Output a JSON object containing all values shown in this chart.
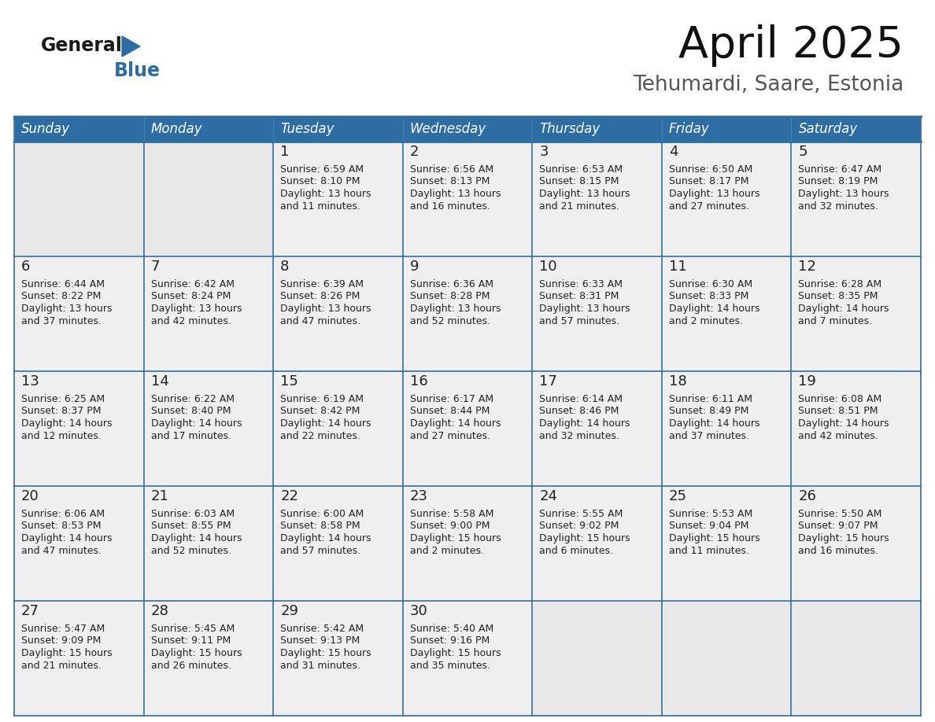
{
  "title": "April 2025",
  "subtitle": "Tehumardi, Saare, Estonia",
  "header_bg": "#2E6DA4",
  "header_text_color": "#FFFFFF",
  "cell_bg": "#EFEFEF",
  "cell_empty_bg": "#E8E8E8",
  "border_color": "#2E6DA4",
  "day_names": [
    "Sunday",
    "Monday",
    "Tuesday",
    "Wednesday",
    "Thursday",
    "Friday",
    "Saturday"
  ],
  "text_color": "#222222",
  "logo_dark": "#1a1a1a",
  "logo_blue": "#2E6DA4",
  "calendar": [
    [
      {
        "day": null,
        "info": ""
      },
      {
        "day": null,
        "info": ""
      },
      {
        "day": 1,
        "info": "Sunrise: 6:59 AM\nSunset: 8:10 PM\nDaylight: 13 hours\nand 11 minutes."
      },
      {
        "day": 2,
        "info": "Sunrise: 6:56 AM\nSunset: 8:13 PM\nDaylight: 13 hours\nand 16 minutes."
      },
      {
        "day": 3,
        "info": "Sunrise: 6:53 AM\nSunset: 8:15 PM\nDaylight: 13 hours\nand 21 minutes."
      },
      {
        "day": 4,
        "info": "Sunrise: 6:50 AM\nSunset: 8:17 PM\nDaylight: 13 hours\nand 27 minutes."
      },
      {
        "day": 5,
        "info": "Sunrise: 6:47 AM\nSunset: 8:19 PM\nDaylight: 13 hours\nand 32 minutes."
      }
    ],
    [
      {
        "day": 6,
        "info": "Sunrise: 6:44 AM\nSunset: 8:22 PM\nDaylight: 13 hours\nand 37 minutes."
      },
      {
        "day": 7,
        "info": "Sunrise: 6:42 AM\nSunset: 8:24 PM\nDaylight: 13 hours\nand 42 minutes."
      },
      {
        "day": 8,
        "info": "Sunrise: 6:39 AM\nSunset: 8:26 PM\nDaylight: 13 hours\nand 47 minutes."
      },
      {
        "day": 9,
        "info": "Sunrise: 6:36 AM\nSunset: 8:28 PM\nDaylight: 13 hours\nand 52 minutes."
      },
      {
        "day": 10,
        "info": "Sunrise: 6:33 AM\nSunset: 8:31 PM\nDaylight: 13 hours\nand 57 minutes."
      },
      {
        "day": 11,
        "info": "Sunrise: 6:30 AM\nSunset: 8:33 PM\nDaylight: 14 hours\nand 2 minutes."
      },
      {
        "day": 12,
        "info": "Sunrise: 6:28 AM\nSunset: 8:35 PM\nDaylight: 14 hours\nand 7 minutes."
      }
    ],
    [
      {
        "day": 13,
        "info": "Sunrise: 6:25 AM\nSunset: 8:37 PM\nDaylight: 14 hours\nand 12 minutes."
      },
      {
        "day": 14,
        "info": "Sunrise: 6:22 AM\nSunset: 8:40 PM\nDaylight: 14 hours\nand 17 minutes."
      },
      {
        "day": 15,
        "info": "Sunrise: 6:19 AM\nSunset: 8:42 PM\nDaylight: 14 hours\nand 22 minutes."
      },
      {
        "day": 16,
        "info": "Sunrise: 6:17 AM\nSunset: 8:44 PM\nDaylight: 14 hours\nand 27 minutes."
      },
      {
        "day": 17,
        "info": "Sunrise: 6:14 AM\nSunset: 8:46 PM\nDaylight: 14 hours\nand 32 minutes."
      },
      {
        "day": 18,
        "info": "Sunrise: 6:11 AM\nSunset: 8:49 PM\nDaylight: 14 hours\nand 37 minutes."
      },
      {
        "day": 19,
        "info": "Sunrise: 6:08 AM\nSunset: 8:51 PM\nDaylight: 14 hours\nand 42 minutes."
      }
    ],
    [
      {
        "day": 20,
        "info": "Sunrise: 6:06 AM\nSunset: 8:53 PM\nDaylight: 14 hours\nand 47 minutes."
      },
      {
        "day": 21,
        "info": "Sunrise: 6:03 AM\nSunset: 8:55 PM\nDaylight: 14 hours\nand 52 minutes."
      },
      {
        "day": 22,
        "info": "Sunrise: 6:00 AM\nSunset: 8:58 PM\nDaylight: 14 hours\nand 57 minutes."
      },
      {
        "day": 23,
        "info": "Sunrise: 5:58 AM\nSunset: 9:00 PM\nDaylight: 15 hours\nand 2 minutes."
      },
      {
        "day": 24,
        "info": "Sunrise: 5:55 AM\nSunset: 9:02 PM\nDaylight: 15 hours\nand 6 minutes."
      },
      {
        "day": 25,
        "info": "Sunrise: 5:53 AM\nSunset: 9:04 PM\nDaylight: 15 hours\nand 11 minutes."
      },
      {
        "day": 26,
        "info": "Sunrise: 5:50 AM\nSunset: 9:07 PM\nDaylight: 15 hours\nand 16 minutes."
      }
    ],
    [
      {
        "day": 27,
        "info": "Sunrise: 5:47 AM\nSunset: 9:09 PM\nDaylight: 15 hours\nand 21 minutes."
      },
      {
        "day": 28,
        "info": "Sunrise: 5:45 AM\nSunset: 9:11 PM\nDaylight: 15 hours\nand 26 minutes."
      },
      {
        "day": 29,
        "info": "Sunrise: 5:42 AM\nSunset: 9:13 PM\nDaylight: 15 hours\nand 31 minutes."
      },
      {
        "day": 30,
        "info": "Sunrise: 5:40 AM\nSunset: 9:16 PM\nDaylight: 15 hours\nand 35 minutes."
      },
      {
        "day": null,
        "info": ""
      },
      {
        "day": null,
        "info": ""
      },
      {
        "day": null,
        "info": ""
      }
    ]
  ]
}
